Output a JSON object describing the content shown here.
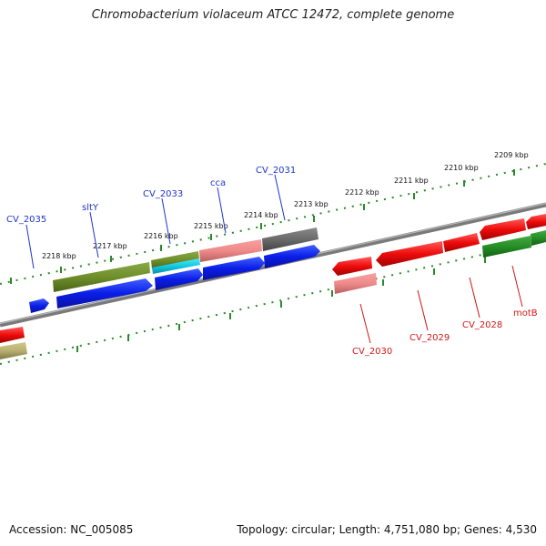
{
  "title": "Chromobacterium violaceum ATCC 12472, complete genome",
  "footer": {
    "accession": "Accession: NC_005085",
    "topology": "Topology: circular; Length: 4,751,080 bp; Genes: 4,530"
  },
  "colors": {
    "backbone": "#7a7a7a",
    "tick": "#2a8a2a",
    "forward_label": "#1f35c8",
    "reverse_label": "#d01818"
  },
  "scale_labels": {
    "k2209": "2209 kbp",
    "k2210": "2210 kbp",
    "k2211": "2211 kbp",
    "k2212": "2212 kbp",
    "k2213": "2213 kbp",
    "k2214": "2214 kbp",
    "k2215": "2215 kbp",
    "k2216": "2216 kbp",
    "k2217": "2217 kbp",
    "k2218": "2218 kbp"
  },
  "gene_labels": {
    "cv2035": "CV_2035",
    "slty": "sltY",
    "cv2033": "CV_2033",
    "cca": "cca",
    "cv2031": "CV_2031",
    "cv2030": "CV_2030",
    "cv2029": "CV_2029",
    "cv2028": "CV_2028",
    "motb": "motB"
  }
}
